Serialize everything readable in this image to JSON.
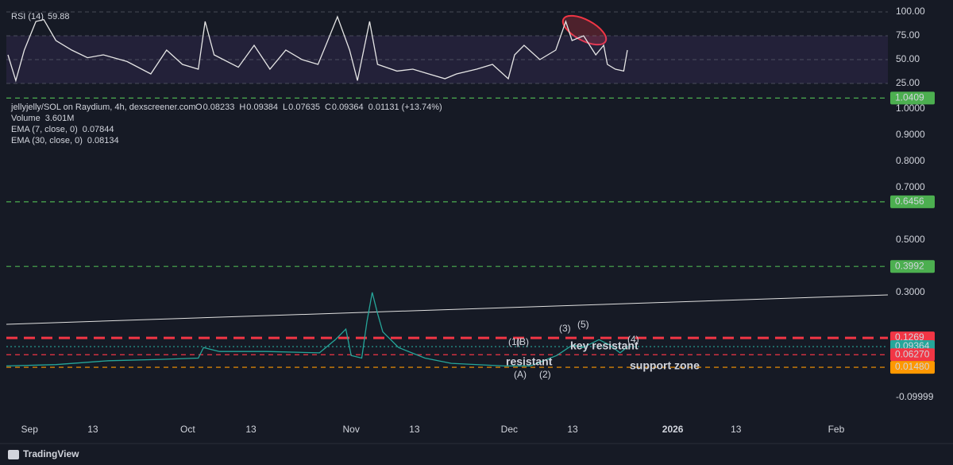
{
  "chart_data": [
    {
      "type": "line",
      "title": "RSI (14)",
      "subtitle": "59.88",
      "xlim": [
        -4.4,
        162.8
      ],
      "ylim": [
        20.8,
        105.8
      ],
      "yticks": [
        {
          "value": 25,
          "label": "25.00"
        },
        {
          "value": 50,
          "label": "50.00"
        },
        {
          "value": 75,
          "label": "75.00"
        },
        {
          "value": 100,
          "label": "100.00"
        }
      ],
      "series": [
        {
          "name": "RSI (14)",
          "color": "#e6e6e6",
          "x": [
            -4.1,
            -2.6,
            -1,
            1.2,
            2.7,
            5,
            8,
            11,
            14,
            18.5,
            23,
            26,
            29,
            32,
            33.3,
            35,
            39.6,
            42.6,
            45.6,
            48.6,
            51.7,
            54.7,
            56.2,
            58.4,
            60.7,
            62.2,
            64.5,
            66,
            69.7,
            72.7,
            75.7,
            78.8,
            81,
            84.8,
            87.8,
            90.8,
            92,
            93.8,
            96.8,
            99.8,
            101.7,
            102.9,
            105.1,
            107.4,
            108.9,
            109.6,
            111.1,
            112.7,
            113.4
          ],
          "values": [
            55,
            28,
            60,
            90,
            92,
            70,
            60,
            52,
            55,
            48,
            35,
            60,
            45,
            40,
            90,
            55,
            42,
            65,
            40,
            60,
            50,
            45,
            65,
            95,
            60,
            28,
            90,
            45,
            38,
            40,
            35,
            30,
            35,
            40,
            45,
            30,
            55,
            65,
            50,
            60,
            90,
            70,
            75,
            55,
            65,
            45,
            40,
            38,
            60
          ]
        }
      ]
    },
    {
      "type": "line",
      "title": "jellyjelly/SOL on Raydium, 4h, dexscreener.com",
      "ohlc": [
        {
          "key": "O",
          "value": "0.08233"
        },
        {
          "key": "H",
          "value": "0.09384"
        },
        {
          "key": "L",
          "value": "0.07635"
        },
        {
          "key": "C",
          "value": "0.09364"
        },
        {
          "key": "",
          "value": "0.01131 (+13.74%)"
        }
      ],
      "indicators": [
        {
          "name": "Volume",
          "value": "3.601M",
          "color": "#26a69a"
        },
        {
          "name": "EMA (7, close, 0)",
          "value": "0.07844",
          "color": "#ffffff"
        },
        {
          "name": "EMA (30, close, 0)",
          "value": "0.08134",
          "color": "#ffeb3b"
        }
      ],
      "xlim": [
        -4.4,
        162.8
      ],
      "ylim": [
        -0.191,
        1.036
      ],
      "xticks": [
        {
          "value": 0,
          "label": "Sep"
        },
        {
          "value": 12,
          "label": "13"
        },
        {
          "value": 30,
          "label": "Oct"
        },
        {
          "value": 42,
          "label": "13"
        },
        {
          "value": 61,
          "label": "Nov"
        },
        {
          "value": 73,
          "label": "13"
        },
        {
          "value": 91,
          "label": "Dec"
        },
        {
          "value": 103,
          "label": "13"
        },
        {
          "value": 122,
          "label": "2026"
        },
        {
          "value": 134,
          "label": "13"
        },
        {
          "value": 153,
          "label": "Feb"
        }
      ],
      "yticks": [
        {
          "value": 1,
          "label": "1.0000"
        },
        {
          "value": 0.9,
          "label": "0.9000"
        },
        {
          "value": 0.8,
          "label": "0.8000"
        },
        {
          "value": 0.7,
          "label": "0.7000"
        },
        {
          "value": 0.5,
          "label": "0.5000"
        },
        {
          "value": 0.3,
          "label": "0.3000"
        },
        -0.09999
      ],
      "price_lines": [
        {
          "value": 1.0409,
          "color": "#4caf50",
          "style": "dashed"
        },
        {
          "value": 0.6456,
          "color": "#4caf50",
          "style": "dashed"
        },
        {
          "value": 0.3992,
          "color": "#4caf50",
          "style": "dashed"
        },
        {
          "value": 0.1269,
          "color": "#f23645",
          "style": "thick-dashed"
        },
        {
          "value": 0.09364,
          "color": "#26a69a",
          "style": "dotted"
        },
        {
          "value": 0.0627,
          "label": "0.06270",
          "color": "#f23645",
          "style": "dashed"
        },
        {
          "value": 0.0148,
          "label": "0.01480",
          "color": "#ff9800",
          "style": "dashed"
        }
      ],
      "series": [
        {
          "name": "jellyjelly/SOL",
          "color": "#26a69a",
          "x": [
            -4.4,
            5,
            15,
            25,
            32,
            33,
            36,
            45,
            55,
            58,
            60,
            61,
            63,
            64,
            65,
            66,
            67,
            70,
            75,
            80,
            90,
            95,
            100,
            103,
            105,
            108,
            110,
            112,
            113.5
          ],
          "values": [
            0.02,
            0.025,
            0.04,
            0.045,
            0.05,
            0.09,
            0.075,
            0.075,
            0.07,
            0.12,
            0.16,
            0.06,
            0.05,
            0.19,
            0.3,
            0.22,
            0.15,
            0.09,
            0.05,
            0.03,
            0.02,
            0.02,
            0.06,
            0.1,
            0.09,
            0.12,
            0.1,
            0.07,
            0.09364
          ]
        }
      ],
      "annotations": [
        "resistant",
        "key resistant",
        "support zone",
        "(1)",
        "(B)",
        "(A)",
        "(2)",
        "(3)",
        "(5)",
        "(4)"
      ]
    }
  ],
  "footer": {
    "brand": "TradingView"
  }
}
